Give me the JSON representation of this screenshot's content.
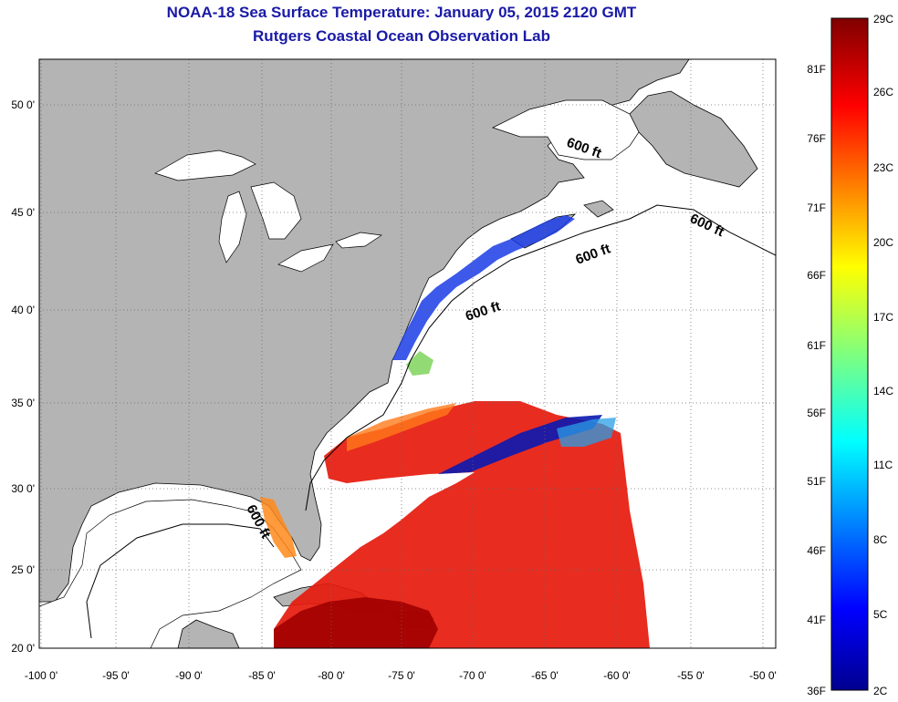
{
  "header": {
    "title": "NOAA-18 Sea Surface Temperature:  January 05, 2015 2120 GMT",
    "subtitle": "Rutgers Coastal Ocean Observation Lab"
  },
  "map": {
    "lon_ticks": [
      "-100 0'",
      "-95 0'",
      "-90 0'",
      "-85 0'",
      "-80 0'",
      "-75 0'",
      "-70 0'",
      "-65 0'",
      "-60 0'",
      "-55 0'",
      "-50 0'"
    ],
    "lat_ticks": [
      "50 0'",
      "45 0'",
      "40 0'",
      "35 0'",
      "30 0'",
      "25 0'",
      "20 0'"
    ],
    "isobath_labels": [
      "600 ft",
      "600 ft",
      "600 ft",
      "600 ft",
      "600 ft"
    ],
    "land_color": "#b4b4b4"
  },
  "colorbar": {
    "celsius_labels": [
      "29C",
      "26C",
      "23C",
      "20C",
      "17C",
      "14C",
      "11C",
      "8C",
      "5C",
      "2C"
    ],
    "fahrenheit_labels": [
      "81F",
      "76F",
      "71F",
      "66F",
      "61F",
      "56F",
      "51F",
      "46F",
      "41F",
      "36F"
    ],
    "colormap": "jet",
    "range_c": [
      2,
      29
    ],
    "range_f": [
      36,
      84
    ]
  }
}
